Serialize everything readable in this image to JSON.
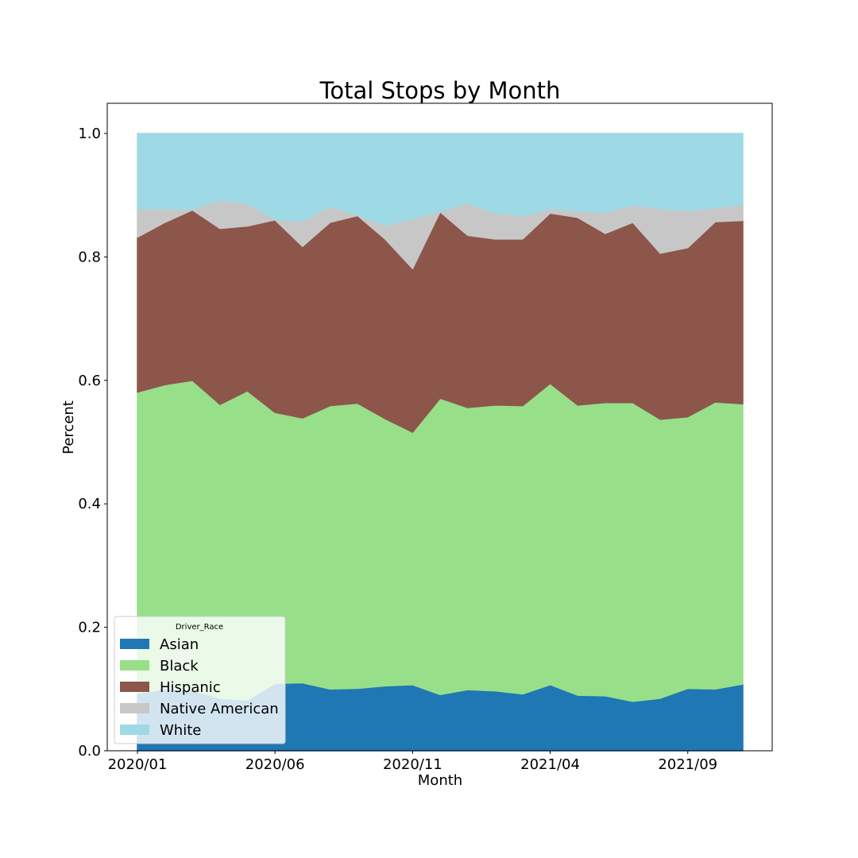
{
  "chart_data": {
    "type": "area",
    "stacked": true,
    "title": "Total Stops by Month",
    "xlabel": "Month",
    "ylabel": "Percent",
    "ylim": [
      0,
      1.05
    ],
    "yticks": [
      "0.0",
      "0.2",
      "0.4",
      "0.6",
      "0.8",
      "1.0"
    ],
    "x": [
      "2020/01",
      "2020/02",
      "2020/03",
      "2020/04",
      "2020/05",
      "2020/06",
      "2020/07",
      "2020/08",
      "2020/09",
      "2020/10",
      "2020/11",
      "2020/12",
      "2021/01",
      "2021/02",
      "2021/03",
      "2021/04",
      "2021/05",
      "2021/06",
      "2021/07",
      "2021/08",
      "2021/09",
      "2021/10",
      "2021/11"
    ],
    "xtick_labels": [
      "2020/01",
      "2020/06",
      "2020/11",
      "2021/04",
      "2021/09"
    ],
    "legend_title": "Driver_Race",
    "legend_position": "lower-left",
    "series": [
      {
        "name": "Asian",
        "color": "#1f77b4",
        "values": [
          0.093,
          0.1,
          0.098,
          0.085,
          0.082,
          0.109,
          0.11,
          0.1,
          0.101,
          0.105,
          0.107,
          0.091,
          0.099,
          0.097,
          0.092,
          0.107,
          0.09,
          0.089,
          0.08,
          0.085,
          0.101,
          0.1,
          0.108
        ]
      },
      {
        "name": "Black",
        "color": "#98df8a",
        "values": [
          0.488,
          0.493,
          0.502,
          0.476,
          0.501,
          0.439,
          0.429,
          0.459,
          0.462,
          0.433,
          0.409,
          0.48,
          0.457,
          0.463,
          0.467,
          0.488,
          0.47,
          0.475,
          0.484,
          0.452,
          0.44,
          0.465,
          0.454
        ]
      },
      {
        "name": "Hispanic",
        "color": "#8c564b",
        "values": [
          0.251,
          0.263,
          0.276,
          0.285,
          0.267,
          0.312,
          0.278,
          0.297,
          0.304,
          0.291,
          0.265,
          0.302,
          0.279,
          0.269,
          0.27,
          0.276,
          0.304,
          0.274,
          0.292,
          0.269,
          0.274,
          0.292,
          0.297
        ]
      },
      {
        "name": "Native American",
        "color": "#c7c7c7",
        "values": [
          0.046,
          0.022,
          0.001,
          0.046,
          0.036,
          0.001,
          0.041,
          0.026,
          0.001,
          0.022,
          0.081,
          0.001,
          0.052,
          0.042,
          0.038,
          0.007,
          0.01,
          0.034,
          0.028,
          0.072,
          0.06,
          0.023,
          0.025
        ]
      },
      {
        "name": "White",
        "color": "#9edae5",
        "values": [
          0.122,
          0.122,
          0.123,
          0.108,
          0.114,
          0.139,
          0.142,
          0.118,
          0.132,
          0.149,
          0.138,
          0.126,
          0.113,
          0.129,
          0.133,
          0.122,
          0.126,
          0.128,
          0.116,
          0.122,
          0.125,
          0.12,
          0.116
        ]
      }
    ]
  }
}
